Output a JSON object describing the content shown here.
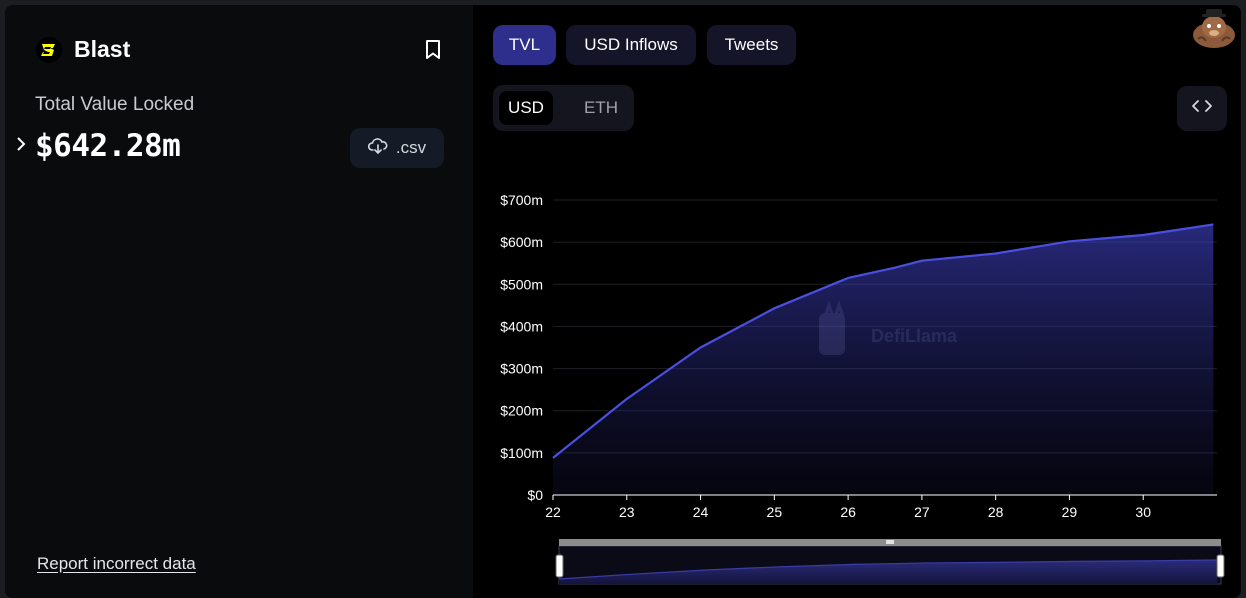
{
  "protocol": {
    "name": "Blast",
    "bookmark_icon": "bookmark-icon"
  },
  "tvl": {
    "label": "Total Value Locked",
    "value": "$642.28m"
  },
  "csv_button": {
    "label": ".csv",
    "icon": "download-cloud-icon"
  },
  "report_link": "Report incorrect data",
  "tabs": [
    {
      "label": "TVL",
      "active": true
    },
    {
      "label": "USD Inflows",
      "active": false
    },
    {
      "label": "Tweets",
      "active": false
    }
  ],
  "units": [
    {
      "label": "USD",
      "active": true
    },
    {
      "label": "ETH",
      "active": false
    }
  ],
  "embed_icon": "code-icon",
  "watermark": "DefiLlama",
  "colors": {
    "accent": "#4344cc",
    "tab_active": "#2e2e8c",
    "line": "#4a4fe0"
  },
  "chart_data": {
    "type": "area",
    "x": [
      22,
      23,
      24,
      25,
      26,
      26.6,
      27,
      28,
      29,
      30,
      30.5,
      30.95
    ],
    "values": [
      88,
      228,
      350,
      443,
      515,
      538,
      556,
      573,
      602,
      617,
      630,
      642
    ],
    "xticks": [
      "22",
      "23",
      "24",
      "25",
      "26",
      "27",
      "28",
      "29",
      "30"
    ],
    "ytick_labels": [
      "$0",
      "$100m",
      "$200m",
      "$300m",
      "$400m",
      "$500m",
      "$600m",
      "$700m"
    ],
    "ylim": [
      0,
      700
    ],
    "grid": true,
    "title": "",
    "xlabel": "",
    "ylabel": ""
  }
}
